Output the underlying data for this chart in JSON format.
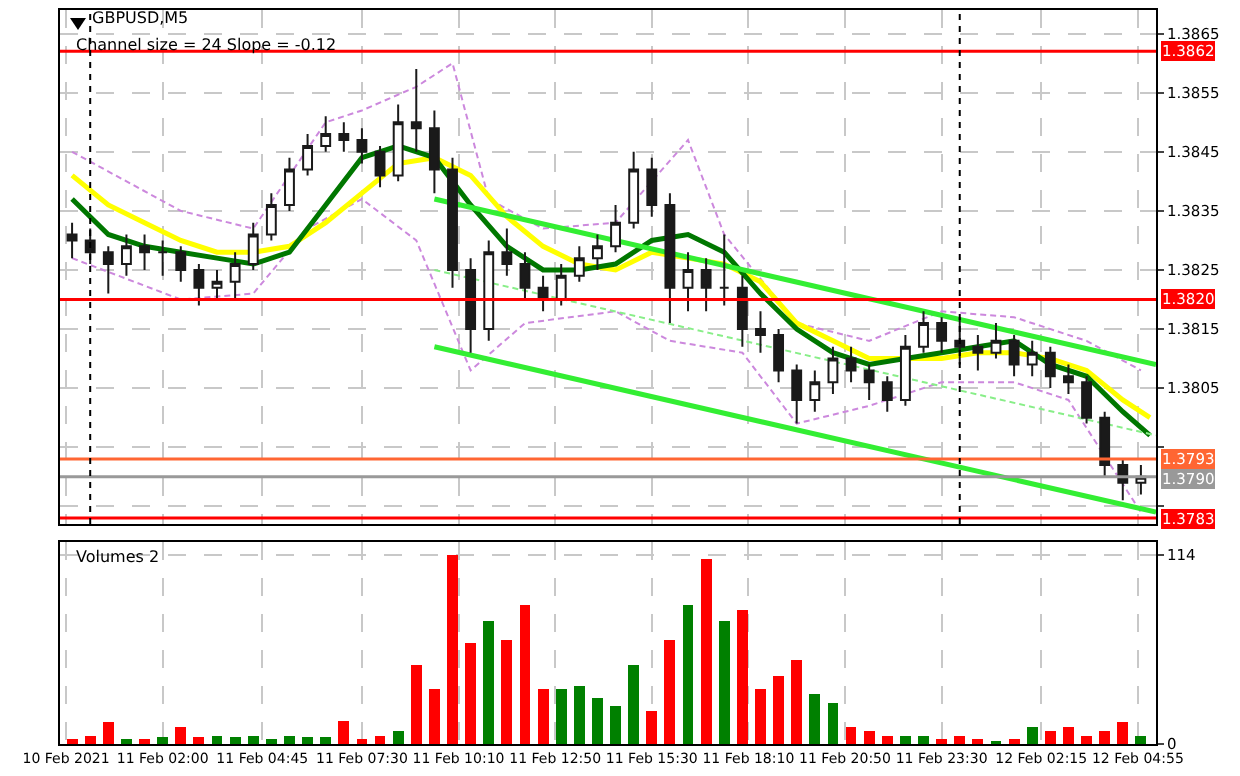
{
  "chart_data": [
    {
      "type": "candlestick",
      "title": "GBPUSD,M5",
      "annotations": [
        "Channel size = 24 Slope = -0.12"
      ],
      "color": "#1a1a1a",
      "grid": true,
      "tick_labels": "y",
      "xlim": [
        "2021-02-10T23:10",
        "2021-02-12T05:25"
      ],
      "xticks": [
        {
          "value": "2021-02-10T23:20",
          "label": null
        },
        {
          "value": "2021-02-11T02:00",
          "label": null
        },
        {
          "value": "2021-02-11T04:45",
          "label": null
        },
        {
          "value": "2021-02-11T07:30",
          "label": null
        },
        {
          "value": "2021-02-11T10:10",
          "label": null
        },
        {
          "value": "2021-02-11T12:50",
          "label": null
        },
        {
          "value": "2021-02-11T15:30",
          "label": null
        },
        {
          "value": "2021-02-11T18:10",
          "label": null
        },
        {
          "value": "2021-02-11T20:50",
          "label": null
        },
        {
          "value": "2021-02-11T23:30",
          "label": null
        },
        {
          "value": "2021-02-12T02:15",
          "label": null
        },
        {
          "value": "2021-02-12T04:55",
          "label": null
        }
      ],
      "ylim": [
        1.3782,
        1.3869
      ],
      "yticks": [
        1.3865,
        1.3855,
        1.3845,
        1.3835,
        1.3825,
        1.3815,
        1.3805,
        {
          "value": 1.3795,
          "label": null
        },
        {
          "value": 1.3785,
          "label": null
        }
      ],
      "x": [
        "2021-02-10T23:30",
        "2021-02-11T00:00",
        "2021-02-11T00:30",
        "2021-02-11T01:00",
        "2021-02-11T01:30",
        "2021-02-11T02:00",
        "2021-02-11T02:30",
        "2021-02-11T03:00",
        "2021-02-11T03:30",
        "2021-02-11T04:00",
        "2021-02-11T04:30",
        "2021-02-11T05:00",
        "2021-02-11T05:30",
        "2021-02-11T06:00",
        "2021-02-11T06:30",
        "2021-02-11T07:00",
        "2021-02-11T07:30",
        "2021-02-11T08:00",
        "2021-02-11T08:30",
        "2021-02-11T09:00",
        "2021-02-11T09:30",
        "2021-02-11T10:00",
        "2021-02-11T10:30",
        "2021-02-11T11:00",
        "2021-02-11T11:30",
        "2021-02-11T12:00",
        "2021-02-11T12:30",
        "2021-02-11T13:00",
        "2021-02-11T13:30",
        "2021-02-11T14:00",
        "2021-02-11T14:30",
        "2021-02-11T15:00",
        "2021-02-11T15:30",
        "2021-02-11T16:00",
        "2021-02-11T16:30",
        "2021-02-11T17:00",
        "2021-02-11T17:30",
        "2021-02-11T18:00",
        "2021-02-11T18:30",
        "2021-02-11T19:00",
        "2021-02-11T19:30",
        "2021-02-11T20:00",
        "2021-02-11T20:30",
        "2021-02-11T21:00",
        "2021-02-11T21:30",
        "2021-02-11T22:00",
        "2021-02-11T22:30",
        "2021-02-11T23:00",
        "2021-02-11T23:30",
        "2021-02-12T00:00",
        "2021-02-12T00:30",
        "2021-02-12T01:00",
        "2021-02-12T01:30",
        "2021-02-12T02:00",
        "2021-02-12T02:30",
        "2021-02-12T03:00",
        "2021-02-12T03:30",
        "2021-02-12T04:00",
        "2021-02-12T04:30",
        "2021-02-12T05:00"
      ],
      "ohlc": [
        [
          1.3831,
          1.3833,
          1.3827,
          1.383
        ],
        [
          1.383,
          1.3832,
          1.3826,
          1.3828
        ],
        [
          1.3828,
          1.3829,
          1.3821,
          1.3826
        ],
        [
          1.3826,
          1.3831,
          1.3824,
          1.3829
        ],
        [
          1.3829,
          1.3831,
          1.3825,
          1.3828
        ],
        [
          1.3828,
          1.383,
          1.3824,
          1.3828
        ],
        [
          1.3828,
          1.3829,
          1.3823,
          1.3825
        ],
        [
          1.3825,
          1.3826,
          1.3819,
          1.3822
        ],
        [
          1.3822,
          1.3825,
          1.382,
          1.3823
        ],
        [
          1.3823,
          1.3828,
          1.382,
          1.3826
        ],
        [
          1.3826,
          1.3833,
          1.3825,
          1.3831
        ],
        [
          1.3831,
          1.3838,
          1.383,
          1.3836
        ],
        [
          1.3836,
          1.3844,
          1.3835,
          1.3842
        ],
        [
          1.3842,
          1.3848,
          1.3841,
          1.3846
        ],
        [
          1.3846,
          1.3851,
          1.3845,
          1.3848
        ],
        [
          1.3848,
          1.385,
          1.3845,
          1.3847
        ],
        [
          1.3847,
          1.3849,
          1.3843,
          1.3845
        ],
        [
          1.3845,
          1.3846,
          1.3839,
          1.3841
        ],
        [
          1.3841,
          1.3853,
          1.384,
          1.385
        ],
        [
          1.385,
          1.3859,
          1.3845,
          1.3849
        ],
        [
          1.3849,
          1.3852,
          1.3838,
          1.3842
        ],
        [
          1.3842,
          1.3844,
          1.3822,
          1.3825
        ],
        [
          1.3825,
          1.3827,
          1.3811,
          1.3815
        ],
        [
          1.3815,
          1.383,
          1.3813,
          1.3828
        ],
        [
          1.3828,
          1.3832,
          1.3824,
          1.3826
        ],
        [
          1.3826,
          1.3828,
          1.382,
          1.3822
        ],
        [
          1.3822,
          1.3824,
          1.3818,
          1.382
        ],
        [
          1.382,
          1.3826,
          1.3819,
          1.3824
        ],
        [
          1.3824,
          1.3829,
          1.3823,
          1.3827
        ],
        [
          1.3827,
          1.3831,
          1.3825,
          1.3829
        ],
        [
          1.3829,
          1.3836,
          1.3828,
          1.3833
        ],
        [
          1.3833,
          1.3845,
          1.3832,
          1.3842
        ],
        [
          1.3842,
          1.3844,
          1.3834,
          1.3836
        ],
        [
          1.3836,
          1.3838,
          1.3816,
          1.3822
        ],
        [
          1.3822,
          1.3828,
          1.3818,
          1.3825
        ],
        [
          1.3825,
          1.3827,
          1.3818,
          1.3822
        ],
        [
          1.3822,
          1.3831,
          1.3819,
          1.3822
        ],
        [
          1.3822,
          1.3824,
          1.3812,
          1.3815
        ],
        [
          1.3815,
          1.3818,
          1.3811,
          1.3814
        ],
        [
          1.3814,
          1.3815,
          1.3806,
          1.3808
        ],
        [
          1.3808,
          1.3809,
          1.3799,
          1.3803
        ],
        [
          1.3803,
          1.3808,
          1.3801,
          1.3806
        ],
        [
          1.3806,
          1.3812,
          1.3804,
          1.381
        ],
        [
          1.381,
          1.3812,
          1.3806,
          1.3808
        ],
        [
          1.3808,
          1.3809,
          1.3803,
          1.3806
        ],
        [
          1.3806,
          1.3807,
          1.3801,
          1.3803
        ],
        [
          1.3803,
          1.3814,
          1.3802,
          1.3812
        ],
        [
          1.3812,
          1.3818,
          1.3811,
          1.3816
        ],
        [
          1.3816,
          1.3817,
          1.3811,
          1.3813
        ],
        [
          1.3813,
          1.3817,
          1.3809,
          1.3812
        ],
        [
          1.3812,
          1.3814,
          1.3808,
          1.3811
        ],
        [
          1.3811,
          1.3816,
          1.381,
          1.3813
        ],
        [
          1.3813,
          1.3814,
          1.3807,
          1.3809
        ],
        [
          1.3809,
          1.3813,
          1.3807,
          1.3811
        ],
        [
          1.3811,
          1.3812,
          1.3805,
          1.3807
        ],
        [
          1.3807,
          1.3809,
          1.3804,
          1.3806
        ],
        [
          1.3806,
          1.3807,
          1.3799,
          1.38
        ],
        [
          1.38,
          1.3801,
          1.379,
          1.3792
        ],
        [
          1.3792,
          1.3793,
          1.3786,
          1.3789
        ],
        [
          1.3789,
          1.3792,
          1.3787,
          1.379
        ]
      ],
      "series": [
        {
          "type": "line",
          "line_style": "dashed",
          "color": "#cc88dd",
          "x": [
            "2021-02-10T23:30",
            "2021-02-11T02:30",
            "2021-02-11T04:30",
            "2021-02-11T06:30",
            "2021-02-11T07:30",
            "2021-02-11T09:00",
            "2021-02-11T10:00",
            "2021-02-11T11:00",
            "2021-02-11T12:30",
            "2021-02-11T14:30",
            "2021-02-11T16:30",
            "2021-02-11T17:30",
            "2021-02-11T19:30",
            "2021-02-11T21:30",
            "2021-02-11T23:30",
            "2021-02-12T01:30",
            "2021-02-12T03:30",
            "2021-02-12T05:00"
          ],
          "values": [
            1.3845,
            1.3835,
            1.3832,
            1.385,
            1.3852,
            1.3856,
            1.386,
            1.3837,
            1.3832,
            1.3833,
            1.3847,
            1.3831,
            1.3816,
            1.3813,
            1.3818,
            1.3817,
            1.3813,
            1.3808
          ]
        },
        {
          "type": "line",
          "line_style": "dashed",
          "color": "#cc88dd",
          "x": [
            "2021-02-10T23:30",
            "2021-02-11T02:30",
            "2021-02-11T04:30",
            "2021-02-11T06:00",
            "2021-02-11T07:30",
            "2021-02-11T09:00",
            "2021-02-11T10:30",
            "2021-02-11T12:00",
            "2021-02-11T14:30",
            "2021-02-11T16:00",
            "2021-02-11T18:00",
            "2021-02-11T19:30",
            "2021-02-11T21:30",
            "2021-02-11T23:30",
            "2021-02-12T01:30",
            "2021-02-12T03:00",
            "2021-02-12T05:00"
          ],
          "values": [
            1.3827,
            1.382,
            1.3821,
            1.3832,
            1.3837,
            1.383,
            1.3808,
            1.3816,
            1.3818,
            1.3813,
            1.3811,
            1.3799,
            1.3802,
            1.3806,
            1.3806,
            1.3803,
            1.3784
          ]
        },
        {
          "type": "line",
          "line_style": "solid",
          "color": "#ffff00",
          "x": [
            "2021-02-10T23:30",
            "2021-02-11T00:30",
            "2021-02-11T01:30",
            "2021-02-11T02:30",
            "2021-02-11T03:30",
            "2021-02-11T04:30",
            "2021-02-11T05:30",
            "2021-02-11T06:30",
            "2021-02-11T07:30",
            "2021-02-11T08:30",
            "2021-02-11T09:30",
            "2021-02-11T10:30",
            "2021-02-11T11:30",
            "2021-02-11T12:30",
            "2021-02-11T13:30",
            "2021-02-11T14:30",
            "2021-02-11T15:30",
            "2021-02-11T16:30",
            "2021-02-11T17:30",
            "2021-02-11T18:30",
            "2021-02-11T19:30",
            "2021-02-11T20:30",
            "2021-02-11T21:30",
            "2021-02-11T22:30",
            "2021-02-11T23:30",
            "2021-02-12T00:30",
            "2021-02-12T01:30",
            "2021-02-12T02:30",
            "2021-02-12T03:30",
            "2021-02-12T04:30",
            "2021-02-12T05:15"
          ],
          "values": [
            1.3841,
            1.3836,
            1.3833,
            1.383,
            1.3828,
            1.3828,
            1.3829,
            1.3833,
            1.3838,
            1.3843,
            1.3844,
            1.3841,
            1.3834,
            1.3829,
            1.3826,
            1.3825,
            1.3828,
            1.3827,
            1.3826,
            1.3823,
            1.3816,
            1.3813,
            1.381,
            1.381,
            1.381,
            1.3811,
            1.3811,
            1.381,
            1.3808,
            1.3803,
            1.38
          ]
        },
        {
          "type": "line",
          "line_style": "solid",
          "color": "#007700",
          "x": [
            "2021-02-10T23:30",
            "2021-02-11T00:30",
            "2021-02-11T01:30",
            "2021-02-11T02:30",
            "2021-02-11T03:30",
            "2021-02-11T04:30",
            "2021-02-11T05:30",
            "2021-02-11T06:30",
            "2021-02-11T07:30",
            "2021-02-11T08:30",
            "2021-02-11T09:30",
            "2021-02-11T10:30",
            "2021-02-11T11:30",
            "2021-02-11T12:30",
            "2021-02-11T13:30",
            "2021-02-11T14:30",
            "2021-02-11T15:30",
            "2021-02-11T16:30",
            "2021-02-11T17:30",
            "2021-02-11T18:30",
            "2021-02-11T19:30",
            "2021-02-11T20:30",
            "2021-02-11T21:30",
            "2021-02-11T22:30",
            "2021-02-11T23:30",
            "2021-02-12T00:30",
            "2021-02-12T01:30",
            "2021-02-12T02:30",
            "2021-02-12T03:30",
            "2021-02-12T04:30",
            "2021-02-12T05:15"
          ],
          "values": [
            1.3837,
            1.3831,
            1.3829,
            1.3828,
            1.3827,
            1.3826,
            1.3828,
            1.3836,
            1.3844,
            1.3846,
            1.3844,
            1.3836,
            1.3829,
            1.3825,
            1.3825,
            1.3826,
            1.383,
            1.3831,
            1.3828,
            1.3821,
            1.3815,
            1.3811,
            1.3809,
            1.381,
            1.3811,
            1.3812,
            1.3813,
            1.3809,
            1.3807,
            1.3801,
            1.3797
          ]
        },
        {
          "type": "line",
          "line_style": "solid",
          "color": "#33ee33",
          "x": [
            "2021-02-11T09:30",
            "2021-02-12T05:25"
          ],
          "values": [
            1.3837,
            1.3809
          ]
        },
        {
          "type": "line",
          "line_style": "dashed",
          "color": "#88ee88",
          "x": [
            "2021-02-11T09:30",
            "2021-02-12T05:25"
          ],
          "values": [
            1.3825,
            1.3797
          ]
        },
        {
          "type": "line",
          "line_style": "solid",
          "color": "#33ee33",
          "x": [
            "2021-02-11T09:30",
            "2021-02-12T05:25"
          ],
          "values": [
            1.3812,
            1.3784
          ]
        }
      ],
      "ref_lines": [
        {
          "axis": "y",
          "value": 1.3862,
          "label": "1.3862",
          "color": "#ff0000"
        },
        {
          "axis": "y",
          "value": 1.382,
          "label": "1.3820",
          "color": "#ff0000"
        },
        {
          "axis": "y",
          "value": 1.3793,
          "label": "1.3793",
          "color": "#ff6633"
        },
        {
          "axis": "y",
          "value": 1.379,
          "label": "1.3790",
          "color": "#999999"
        },
        {
          "axis": "y",
          "value": 1.3783,
          "label": "1.3783",
          "color": "#ff0000"
        },
        {
          "axis": "x",
          "value": "2021-02-11T00:00",
          "color": "#000000",
          "line_style": "dotted"
        },
        {
          "axis": "x",
          "value": "2021-02-12T00:00",
          "color": "#000000",
          "line_style": "dotted"
        }
      ]
    },
    {
      "type": "bar",
      "annotations": [
        "Volumes 2"
      ],
      "grid": true,
      "xlim": [
        "2021-02-10T23:10",
        "2021-02-12T05:25"
      ],
      "xticks": [
        {
          "value": "2021-02-10T23:20",
          "label": "10 Feb 2021"
        },
        {
          "value": "2021-02-11T02:00",
          "label": "11 Feb 02:00"
        },
        {
          "value": "2021-02-11T04:45",
          "label": "11 Feb 04:45"
        },
        {
          "value": "2021-02-11T07:30",
          "label": "11 Feb 07:30"
        },
        {
          "value": "2021-02-11T10:10",
          "label": "11 Feb 10:10"
        },
        {
          "value": "2021-02-11T12:50",
          "label": "11 Feb 12:50"
        },
        {
          "value": "2021-02-11T15:30",
          "label": "11 Feb 15:30"
        },
        {
          "value": "2021-02-11T18:10",
          "label": "11 Feb 18:10"
        },
        {
          "value": "2021-02-11T20:50",
          "label": "11 Feb 20:50"
        },
        {
          "value": "2021-02-11T23:30",
          "label": "11 Feb 23:30"
        },
        {
          "value": "2021-02-12T02:15",
          "label": "12 Feb 02:15"
        },
        {
          "value": "2021-02-12T04:55",
          "label": "12 Feb 04:55"
        }
      ],
      "ylim": [
        0,
        122
      ],
      "yticks": [
        0,
        114
      ],
      "x": [
        "2021-02-10T23:30",
        "2021-02-11T00:00",
        "2021-02-11T00:30",
        "2021-02-11T01:00",
        "2021-02-11T01:30",
        "2021-02-11T02:00",
        "2021-02-11T02:30",
        "2021-02-11T03:00",
        "2021-02-11T03:30",
        "2021-02-11T04:00",
        "2021-02-11T04:30",
        "2021-02-11T05:00",
        "2021-02-11T05:30",
        "2021-02-11T06:00",
        "2021-02-11T06:30",
        "2021-02-11T07:00",
        "2021-02-11T07:30",
        "2021-02-11T08:00",
        "2021-02-11T08:30",
        "2021-02-11T09:00",
        "2021-02-11T09:30",
        "2021-02-11T10:00",
        "2021-02-11T10:30",
        "2021-02-11T11:00",
        "2021-02-11T11:30",
        "2021-02-11T12:00",
        "2021-02-11T12:30",
        "2021-02-11T13:00",
        "2021-02-11T13:30",
        "2021-02-11T14:00",
        "2021-02-11T14:30",
        "2021-02-11T15:00",
        "2021-02-11T15:30",
        "2021-02-11T16:00",
        "2021-02-11T16:30",
        "2021-02-11T17:00",
        "2021-02-11T17:30",
        "2021-02-11T18:00",
        "2021-02-11T18:30",
        "2021-02-11T19:00",
        "2021-02-11T19:30",
        "2021-02-11T20:00",
        "2021-02-11T20:30",
        "2021-02-11T21:00",
        "2021-02-11T21:30",
        "2021-02-11T22:00",
        "2021-02-11T22:30",
        "2021-02-11T23:00",
        "2021-02-11T23:30",
        "2021-02-12T00:00",
        "2021-02-12T00:30",
        "2021-02-12T01:00",
        "2021-02-12T01:30",
        "2021-02-12T02:00",
        "2021-02-12T02:30",
        "2021-02-12T03:00",
        "2021-02-12T03:30",
        "2021-02-12T04:00",
        "2021-02-12T04:30",
        "2021-02-12T05:00"
      ],
      "values": [
        3,
        5,
        13,
        3,
        3,
        4,
        10,
        4,
        5,
        4,
        5,
        3,
        5,
        4,
        4,
        14,
        3,
        5,
        8,
        48,
        33,
        114,
        61,
        74,
        63,
        84,
        33,
        33,
        35,
        28,
        23,
        48,
        20,
        63,
        84,
        112,
        74,
        81,
        33,
        41,
        51,
        30,
        25,
        10,
        8,
        5,
        5,
        5,
        3,
        5,
        3,
        2,
        3,
        10,
        8,
        10,
        5,
        8,
        13,
        5
      ],
      "colors": [
        "#ff0000",
        "#ff0000",
        "#ff0000",
        "#008000",
        "#ff0000",
        "#008000",
        "#ff0000",
        "#ff0000",
        "#008000",
        "#008000",
        "#008000",
        "#008000",
        "#008000",
        "#008000",
        "#008000",
        "#ff0000",
        "#ff0000",
        "#ff0000",
        "#008000",
        "#ff0000",
        "#ff0000",
        "#ff0000",
        "#ff0000",
        "#008000",
        "#ff0000",
        "#ff0000",
        "#ff0000",
        "#008000",
        "#008000",
        "#008000",
        "#008000",
        "#008000",
        "#ff0000",
        "#ff0000",
        "#008000",
        "#ff0000",
        "#008000",
        "#ff0000",
        "#ff0000",
        "#ff0000",
        "#ff0000",
        "#008000",
        "#008000",
        "#ff0000",
        "#ff0000",
        "#ff0000",
        "#008000",
        "#008000",
        "#ff0000",
        "#ff0000",
        "#ff0000",
        "#008000",
        "#ff0000",
        "#008000",
        "#ff0000",
        "#ff0000",
        "#ff0000",
        "#ff0000",
        "#ff0000",
        "#008000"
      ]
    }
  ]
}
